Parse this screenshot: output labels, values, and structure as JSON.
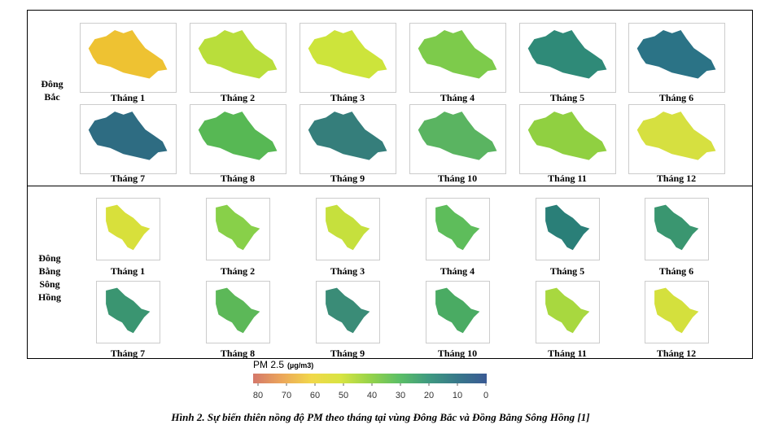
{
  "regions": [
    {
      "label": "Đông Bắc",
      "maps": [
        {
          "month": "Tháng 1",
          "color": "#eec232"
        },
        {
          "month": "Tháng 2",
          "color": "#b9de3b"
        },
        {
          "month": "Tháng 3",
          "color": "#cde43b"
        },
        {
          "month": "Tháng 4",
          "color": "#7dcb4b"
        },
        {
          "month": "Tháng 5",
          "color": "#2f8a78"
        },
        {
          "month": "Tháng 6",
          "color": "#2b7386"
        },
        {
          "month": "Tháng 7",
          "color": "#2e6c82"
        },
        {
          "month": "Tháng 8",
          "color": "#57b854"
        },
        {
          "month": "Tháng 9",
          "color": "#357e7b"
        },
        {
          "month": "Tháng 10",
          "color": "#5ab461"
        },
        {
          "month": "Tháng 11",
          "color": "#90d041"
        },
        {
          "month": "Tháng 12",
          "color": "#d6e040"
        }
      ]
    },
    {
      "label": "Đông Bằng Sông Hồng",
      "maps": [
        {
          "month": "Tháng 1",
          "color": "#d8e03b"
        },
        {
          "month": "Tháng 2",
          "color": "#88d049"
        },
        {
          "month": "Tháng 3",
          "color": "#c6e03d"
        },
        {
          "month": "Tháng 4",
          "color": "#5ebd5b"
        },
        {
          "month": "Tháng 5",
          "color": "#2a7f78"
        },
        {
          "month": "Tháng 6",
          "color": "#3a9670"
        },
        {
          "month": "Tháng 7",
          "color": "#3a9571"
        },
        {
          "month": "Tháng 8",
          "color": "#5cb858"
        },
        {
          "month": "Tháng 9",
          "color": "#3a8c77"
        },
        {
          "month": "Tháng 10",
          "color": "#4aab63"
        },
        {
          "month": "Tháng 11",
          "color": "#a8d83f"
        },
        {
          "month": "Tháng 12",
          "color": "#d4e03d"
        }
      ]
    }
  ],
  "colorbar": {
    "title": "PM 2.5",
    "unit": "(µg/m3)",
    "lim": [
      80,
      0
    ],
    "ticks": [
      80,
      70,
      60,
      50,
      40,
      30,
      20,
      10,
      0
    ],
    "colors": [
      "#d4786a",
      "#eca75a",
      "#f1d84a",
      "#d8e442",
      "#96d34a",
      "#5cbf66",
      "#3f9a80",
      "#38788a",
      "#3a5a94"
    ]
  },
  "caption": "Hình 2. Sự biến thiên nồng độ PM theo tháng tại vùng Đông Bắc và Đồng Bằng Sông Hồng [1]"
}
